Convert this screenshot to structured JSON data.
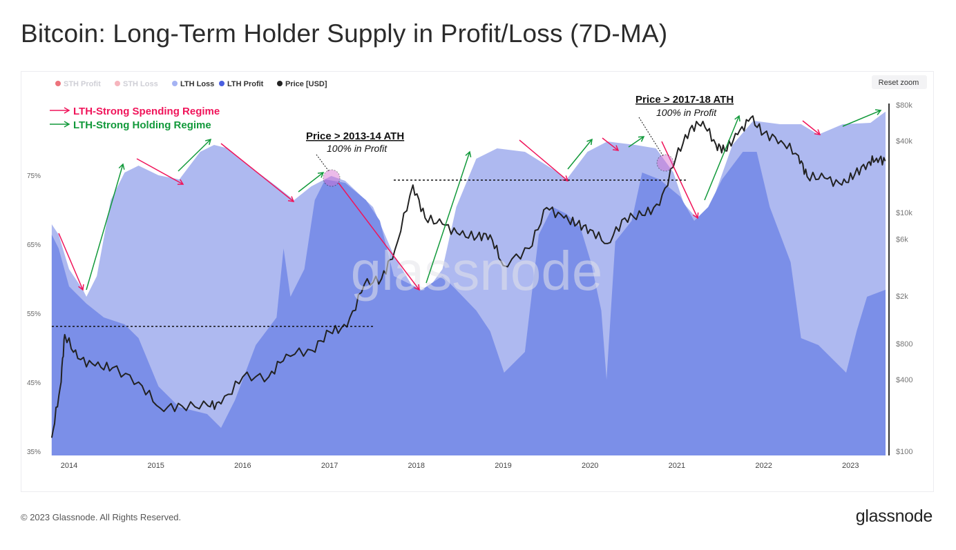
{
  "title": "Bitcoin: Long-Term Holder Supply in Profit/Loss (7D-MA)",
  "reset_zoom_label": "Reset zoom",
  "footer": "© 2023 Glassnode. All Rights Reserved.",
  "brand": "glassnode",
  "watermark": "glassnode",
  "colors": {
    "lth_loss": "#aeb9f0",
    "lth_profit": "#7b8fe8",
    "price": "#222222",
    "sth_profit": "#e8505b",
    "sth_loss": "#f4a3ad",
    "spending": "#f0145a",
    "holding": "#11993a"
  },
  "legend": [
    {
      "label": "STH Profit",
      "color": "#e8505b",
      "disabled": true
    },
    {
      "label": "STH Loss",
      "color": "#f4a3ad",
      "disabled": true
    },
    {
      "label": "LTH Loss",
      "color": "#a5b3f3",
      "disabled": false
    },
    {
      "label": "LTH Profit",
      "color": "#4a5fe0",
      "disabled": false
    },
    {
      "label": "Price [USD]",
      "color": "#222222",
      "disabled": false
    }
  ],
  "key": {
    "spending": "LTH-Strong Spending Regime",
    "holding": "LTH-Strong Holding Regime"
  },
  "annotations": {
    "ath1_title": "Price > 2013-14 ATH",
    "ath1_sub": "100% in Profit",
    "ath2_title": "Price > 2017-18 ATH",
    "ath2_sub": "100% in Profit"
  },
  "chart_data": {
    "type": "area",
    "title": "Bitcoin: Long-Term Holder Supply in Profit/Loss (7D-MA)",
    "x_ticks": [
      "2014",
      "2015",
      "2016",
      "2017",
      "2018",
      "2019",
      "2020",
      "2021",
      "2022",
      "2023"
    ],
    "y_left_ticks": [
      "75%",
      "65%",
      "55%",
      "45%",
      "35%"
    ],
    "y_left_range": [
      35,
      85
    ],
    "y_right_ticks": [
      "$80k",
      "$40k",
      "$10k",
      "$6k",
      "$2k",
      "$800",
      "$400",
      "$100"
    ],
    "y_right_values": [
      80000,
      40000,
      10000,
      6000,
      2000,
      800,
      400,
      100
    ],
    "y_right_scale": "log",
    "series": [
      {
        "name": "LTH Supply total (%)",
        "x": [
          2013.8,
          2013.88,
          2014.0,
          2014.16,
          2014.2,
          2014.32,
          2014.48,
          2014.64,
          2014.8,
          2015.03,
          2015.27,
          2015.51,
          2015.67,
          2015.83,
          2016.07,
          2016.39,
          2016.59,
          2016.79,
          2017.02,
          2017.18,
          2017.5,
          2017.74,
          2017.98,
          2018.1,
          2018.3,
          2018.46,
          2018.69,
          2018.93,
          2019.25,
          2019.57,
          2019.73,
          2019.97,
          2020.2,
          2020.52,
          2020.76,
          2020.96,
          2021.08,
          2021.24,
          2021.4,
          2021.64,
          2021.88,
          2022.19,
          2022.43,
          2022.63,
          2022.91,
          2023.23,
          2023.4
        ],
        "values": [
          67.9,
          66.4,
          61.4,
          58.4,
          57.4,
          60.4,
          71.4,
          75.4,
          76.4,
          75,
          74.4,
          78.4,
          79.4,
          78.9,
          76.4,
          73.4,
          71.4,
          73.4,
          74.9,
          74.2,
          70.4,
          63.4,
          58.4,
          57.9,
          61.4,
          70.4,
          77.4,
          78.9,
          78.4,
          75.9,
          74.4,
          78.4,
          79.9,
          79.4,
          78.9,
          75.4,
          70.9,
          68.6,
          70.9,
          79.4,
          82.9,
          82.4,
          82.4,
          80.9,
          82.4,
          82.6,
          84.2
        ]
      },
      {
        "name": "LTH Profit (%)",
        "x": [
          2013.8,
          2013.88,
          2014.0,
          2014.2,
          2014.4,
          2014.64,
          2014.8,
          2015.03,
          2015.27,
          2015.59,
          2015.75,
          2015.91,
          2016.15,
          2016.39,
          2016.47,
          2016.55,
          2016.71,
          2016.83,
          2016.95,
          2017.18,
          2017.42,
          2017.58,
          2017.74,
          2017.9,
          2018.06,
          2018.3,
          2018.46,
          2018.69,
          2018.85,
          2019.01,
          2019.25,
          2019.41,
          2019.57,
          2019.73,
          2019.89,
          2020.01,
          2020.13,
          2020.19,
          2020.29,
          2020.48,
          2020.6,
          2020.8,
          2021.04,
          2021.2,
          2021.36,
          2021.52,
          2021.76,
          2021.92,
          2022.07,
          2022.31,
          2022.43,
          2022.63,
          2022.79,
          2022.95,
          2023.07,
          2023.19,
          2023.4
        ],
        "values": [
          66.4,
          64.4,
          58.9,
          56.4,
          54.4,
          53.4,
          51.4,
          44.4,
          41.4,
          40.4,
          38.4,
          42.4,
          50.4,
          54.4,
          64.4,
          57.4,
          61.4,
          71.4,
          74.4,
          73.9,
          71.4,
          68.4,
          60.4,
          59.4,
          58.4,
          60.4,
          58.4,
          55.4,
          52.4,
          46.4,
          49.4,
          66.4,
          70.4,
          69.4,
          67.4,
          62.4,
          55.4,
          45.4,
          65.4,
          68.4,
          75.4,
          74.4,
          71.9,
          68.4,
          70.4,
          74.4,
          78.4,
          78.4,
          70.4,
          62.4,
          51.4,
          50.4,
          48.4,
          46.4,
          52.4,
          57.4,
          58.4
        ]
      },
      {
        "name": "Price [USD]",
        "x": [
          2013.8,
          2013.9,
          2013.95,
          2014.1,
          2014.3,
          2014.5,
          2014.8,
          2015.05,
          2015.3,
          2015.6,
          2015.75,
          2016.0,
          2016.3,
          2016.5,
          2016.8,
          2017.0,
          2017.2,
          2017.4,
          2017.6,
          2017.75,
          2017.96,
          2018.1,
          2018.3,
          2018.5,
          2018.7,
          2018.85,
          2019.0,
          2019.3,
          2019.5,
          2019.7,
          2019.85,
          2020.0,
          2020.2,
          2020.4,
          2020.6,
          2020.8,
          2020.99,
          2021.15,
          2021.3,
          2021.45,
          2021.55,
          2021.7,
          2021.85,
          2022.0,
          2022.2,
          2022.4,
          2022.5,
          2022.7,
          2022.9,
          2023.05,
          2023.2,
          2023.3,
          2023.4
        ],
        "values": [
          130,
          350,
          950,
          600,
          520,
          500,
          380,
          230,
          240,
          240,
          250,
          420,
          420,
          650,
          700,
          1000,
          1100,
          2500,
          2800,
          4800,
          17000,
          9000,
          8000,
          6500,
          6300,
          6500,
          3600,
          5000,
          11000,
          9000,
          8000,
          7200,
          5500,
          9000,
          9500,
          11500,
          29000,
          50000,
          58000,
          37000,
          33000,
          45000,
          62000,
          46000,
          40000,
          30000,
          20000,
          19500,
          17000,
          21000,
          26000,
          28500,
          27000
        ]
      }
    ]
  }
}
